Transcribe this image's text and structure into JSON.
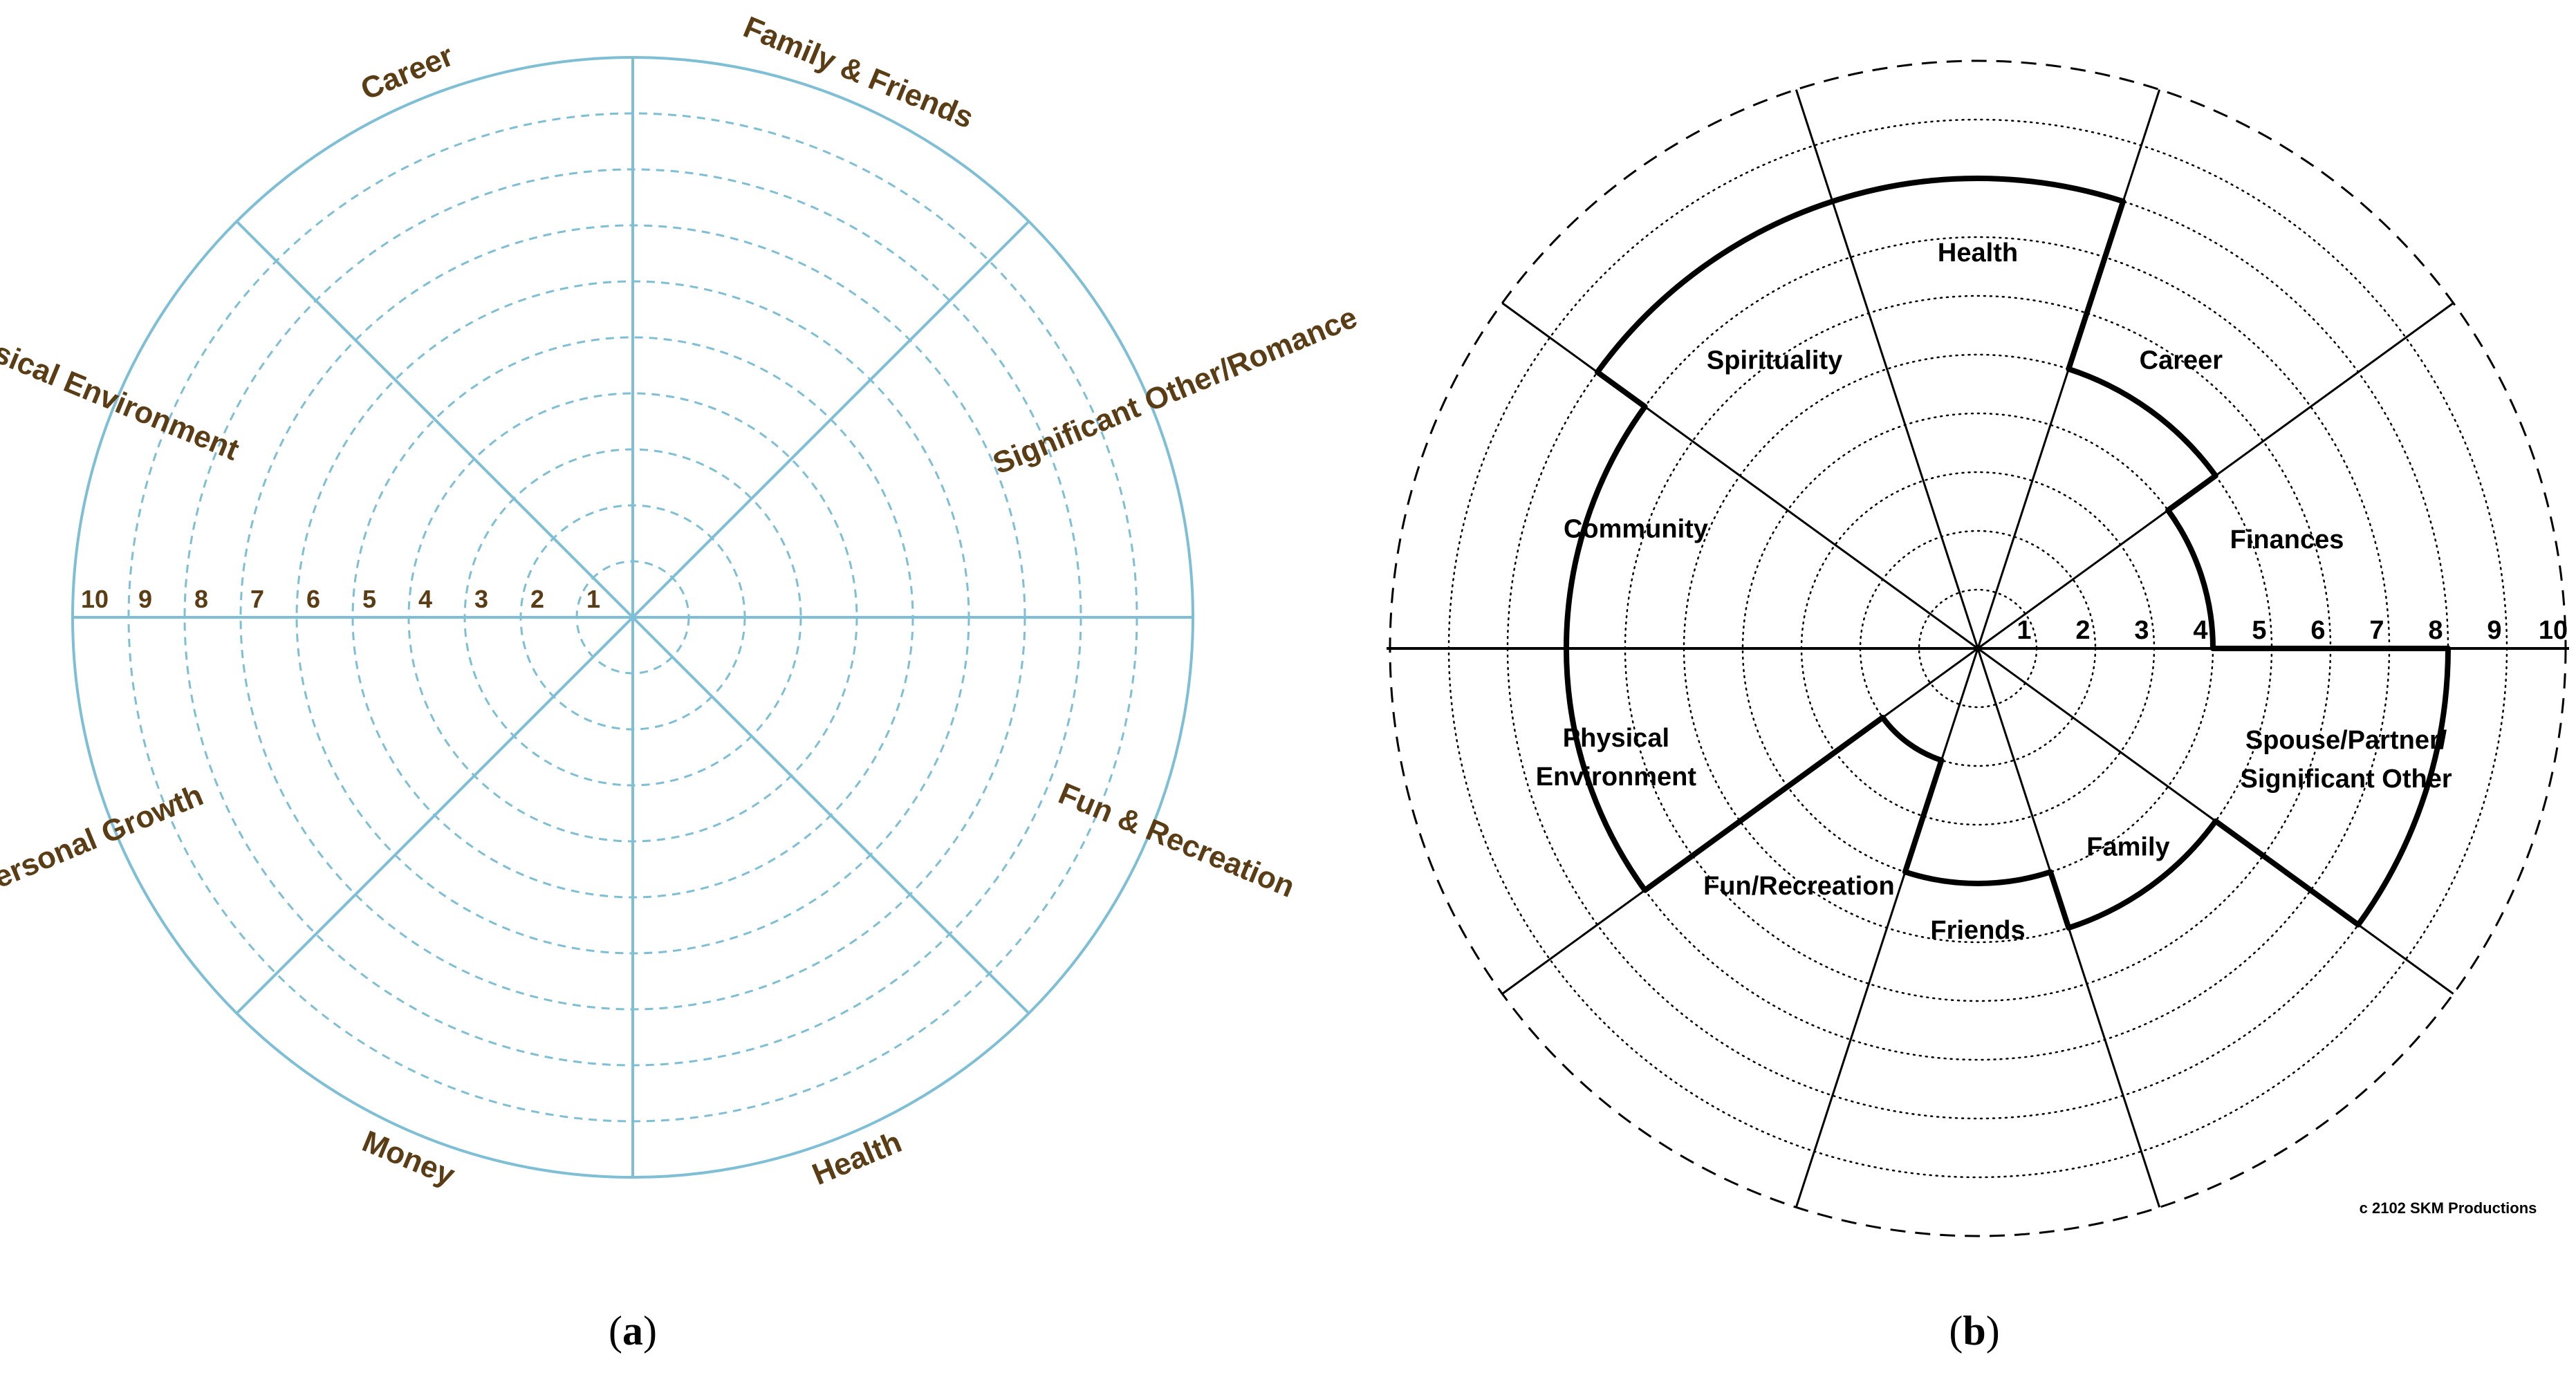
{
  "panel_a": {
    "caption_letter": "a",
    "categories": [
      "Family & Friends",
      "Significant Other/Romance",
      "Fun & Recreation",
      "Health",
      "Money",
      "Personal Growth",
      "Physical Environment",
      "Career"
    ],
    "scale_labels": [
      "1",
      "2",
      "3",
      "4",
      "5",
      "6",
      "7",
      "8",
      "9",
      "10"
    ],
    "colors": {
      "lines": "#7fbfd6",
      "dashed": "#7fbfd6",
      "labels": "#5a3d14"
    }
  },
  "panel_b": {
    "caption_letter": "b",
    "categories": [
      {
        "lines": [
          "Health"
        ],
        "score": 8
      },
      {
        "lines": [
          "Career"
        ],
        "score": 5
      },
      {
        "lines": [
          "Finances"
        ],
        "score": 4
      },
      {
        "lines": [
          "Spouse/Partner/",
          "Significant Other"
        ],
        "score": 8
      },
      {
        "lines": [
          "Family"
        ],
        "score": 5
      },
      {
        "lines": [
          "Friends"
        ],
        "score": 4
      },
      {
        "lines": [
          "Fun/Recreation"
        ],
        "score": 2
      },
      {
        "lines": [
          "Physical",
          "Environment"
        ],
        "score": 7
      },
      {
        "lines": [
          "Community"
        ],
        "score": 7
      },
      {
        "lines": [
          "Spirituality"
        ],
        "score": 8
      }
    ],
    "scale_labels": [
      "1",
      "2",
      "3",
      "4",
      "5",
      "6",
      "7",
      "8",
      "9",
      "10"
    ],
    "copyright": "c 2102 SKM Productions",
    "colors": {
      "lines": "#000000",
      "profile": "#000000"
    }
  }
}
